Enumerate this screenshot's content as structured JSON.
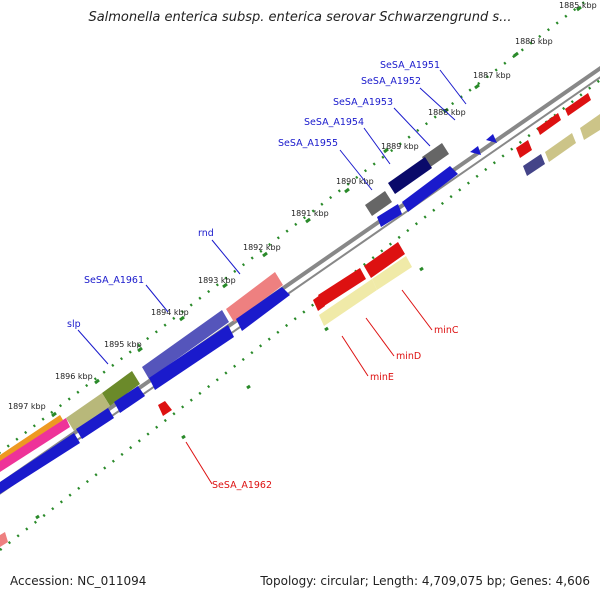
{
  "title": "Salmonella enterica subsp. enterica serovar Schwarzengrund s...",
  "footer": {
    "accession": "Accession: NC_011094",
    "topology": "Topology: circular; Length: 4,709,075 bp; Genes: 4,606"
  },
  "kbp_ticks": [
    "1885 kbp",
    "1886 kbp",
    "1887 kbp",
    "1888 kbp",
    "1889 kbp",
    "1890 kbp",
    "1891 kbp",
    "1892 kbp",
    "1893 kbp",
    "1894 kbp",
    "1895 kbp",
    "1896 kbp",
    "1897 kbp"
  ],
  "gene_labels_forward": [
    "SeSA_A1951",
    "SeSA_A1952",
    "SeSA_A1953",
    "SeSA_A1954",
    "SeSA_A1955",
    "rnd",
    "SeSA_A1961",
    "slp"
  ],
  "gene_labels_reverse": [
    "minC",
    "minD",
    "minE",
    "SeSA_A1962"
  ],
  "colors": {
    "forward_label": "#1a1acc",
    "reverse_label": "#dd1111",
    "backbone": "#888888",
    "tick": "#2a8a2a"
  }
}
